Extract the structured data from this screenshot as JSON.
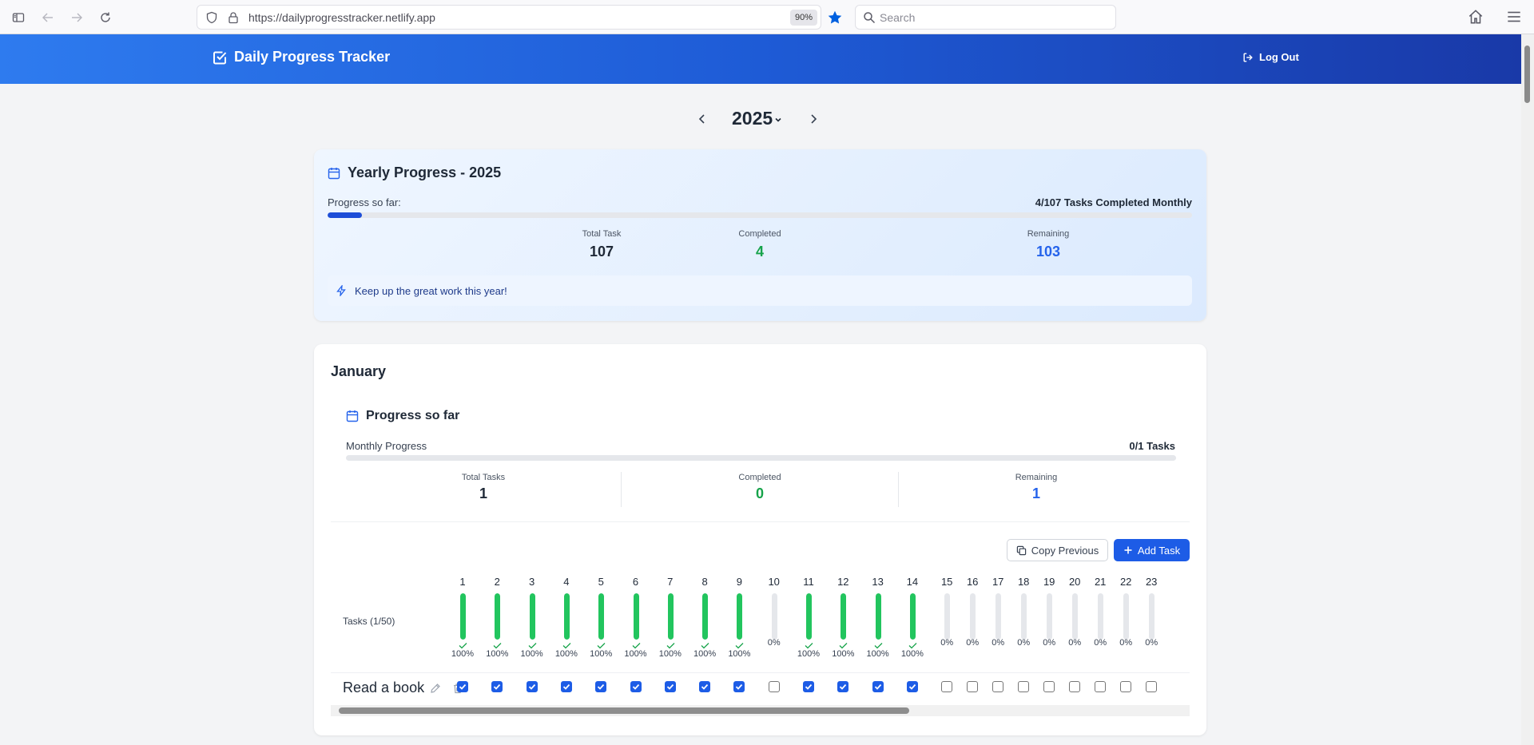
{
  "browser": {
    "url": "https://dailyprogresstracker.netlify.app",
    "zoom": "90%",
    "search_placeholder": "Search"
  },
  "header": {
    "title": "Daily Progress Tracker",
    "logout_label": "Log Out"
  },
  "year_selector": {
    "year": "2025"
  },
  "yearly": {
    "title": "Yearly Progress - 2025",
    "progress_label": "Progress so far:",
    "progress_count": "4/107 Tasks Completed Monthly",
    "progress_fraction": 0.04,
    "stats": [
      {
        "label": "Total Task",
        "value": "107"
      },
      {
        "label": "Completed",
        "value": "4"
      },
      {
        "label": "Remaining",
        "value": "103"
      }
    ],
    "note": "Keep up the great work this year!"
  },
  "month": {
    "name": "January",
    "progress_title": "Progress so far",
    "progress_label": "Monthly Progress",
    "progress_count": "0/1 Tasks",
    "progress_fraction": 0,
    "stats": [
      {
        "label": "Total Tasks",
        "value": "1"
      },
      {
        "label": "Completed",
        "value": "0"
      },
      {
        "label": "Remaining",
        "value": "1"
      }
    ],
    "copy_label": "Copy Previous",
    "add_label": "Add Task",
    "tasks_label": "Tasks (1/50)",
    "days": [
      {
        "day": "1",
        "pct": "100%"
      },
      {
        "day": "2",
        "pct": "100%"
      },
      {
        "day": "3",
        "pct": "100%"
      },
      {
        "day": "4",
        "pct": "100%"
      },
      {
        "day": "5",
        "pct": "100%"
      },
      {
        "day": "6",
        "pct": "100%"
      },
      {
        "day": "7",
        "pct": "100%"
      },
      {
        "day": "8",
        "pct": "100%"
      },
      {
        "day": "9",
        "pct": "100%"
      },
      {
        "day": "10",
        "pct": "0%"
      },
      {
        "day": "11",
        "pct": "100%"
      },
      {
        "day": "12",
        "pct": "100%"
      },
      {
        "day": "13",
        "pct": "100%"
      },
      {
        "day": "14",
        "pct": "100%"
      },
      {
        "day": "15",
        "pct": "0%"
      },
      {
        "day": "16",
        "pct": "0%"
      },
      {
        "day": "17",
        "pct": "0%"
      },
      {
        "day": "18",
        "pct": "0%"
      },
      {
        "day": "19",
        "pct": "0%"
      },
      {
        "day": "20",
        "pct": "0%"
      },
      {
        "day": "21",
        "pct": "0%"
      },
      {
        "day": "22",
        "pct": "0%"
      },
      {
        "day": "23",
        "pct": "0%"
      }
    ],
    "tasks": [
      {
        "name": "Read a book",
        "checks": [
          true,
          true,
          true,
          true,
          true,
          true,
          true,
          true,
          true,
          false,
          true,
          true,
          true,
          true,
          false,
          false,
          false,
          false,
          false,
          false,
          false,
          false,
          false
        ]
      }
    ]
  }
}
